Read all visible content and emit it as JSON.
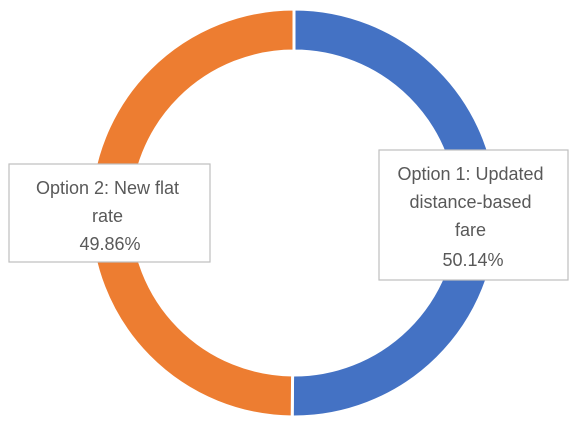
{
  "chart_data": {
    "type": "pie",
    "variant": "doughnut",
    "title": "",
    "legend": "none",
    "start_angle_deg": 0,
    "direction": "clockwise",
    "slices": [
      {
        "label_lines": [
          "Option 1: Updated",
          "distance-based",
          "fare"
        ],
        "value": 50.14,
        "value_label": "50.14%",
        "color": "#4472C4"
      },
      {
        "label_lines": [
          "Option 2: New flat",
          "rate"
        ],
        "value": 49.86,
        "value_label": "49.86%",
        "color": "#ED7D31"
      }
    ]
  }
}
